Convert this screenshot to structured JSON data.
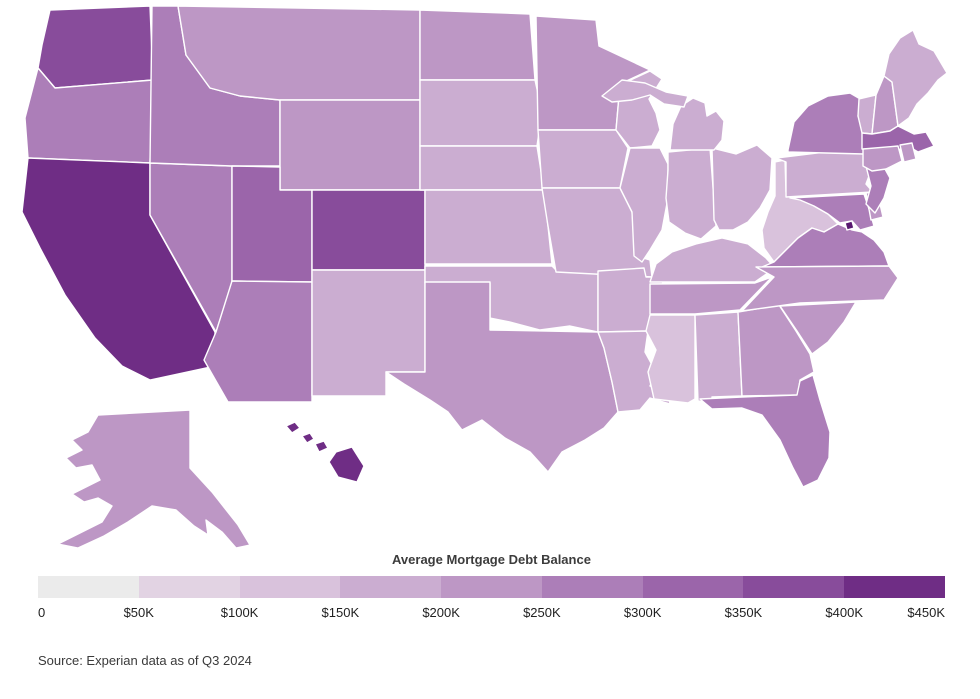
{
  "chart_data": {
    "type": "choropleth",
    "region": "United States",
    "title": "Average Mortgage Debt Balance",
    "source": "Source: Experian data as of Q3 2024",
    "legend": {
      "title": "Average Mortgage Debt Balance",
      "tick_labels": [
        "0",
        "$50K",
        "$100K",
        "$150K",
        "$200K",
        "$250K",
        "$300K",
        "$350K",
        "$400K",
        "$450K"
      ],
      "bucket_size_usd": 50000,
      "range_usd": [
        0,
        450000
      ],
      "segment_colors": [
        "#ebebeb",
        "#e2d3e3",
        "#d9c2dc",
        "#cbadd1",
        "#bd97c5",
        "#ac7eb8",
        "#9b65aa",
        "#884c9b",
        "#6f2d85",
        "#591a70"
      ]
    },
    "states": [
      {
        "abbr": "AL",
        "name": "Alabama",
        "avg_balance_usd": 174000
      },
      {
        "abbr": "AK",
        "name": "Alaska",
        "avg_balance_usd": 247000
      },
      {
        "abbr": "AZ",
        "name": "Arizona",
        "avg_balance_usd": 281000
      },
      {
        "abbr": "AR",
        "name": "Arkansas",
        "avg_balance_usd": 151000
      },
      {
        "abbr": "CA",
        "name": "California",
        "avg_balance_usd": 447000
      },
      {
        "abbr": "CO",
        "name": "Colorado",
        "avg_balance_usd": 351000
      },
      {
        "abbr": "CT",
        "name": "Connecticut",
        "avg_balance_usd": 245000
      },
      {
        "abbr": "DE",
        "name": "Delaware",
        "avg_balance_usd": 229000
      },
      {
        "abbr": "DC",
        "name": "District of Columbia",
        "avg_balance_usd": 503000
      },
      {
        "abbr": "FL",
        "name": "Florida",
        "avg_balance_usd": 255000
      },
      {
        "abbr": "GA",
        "name": "Georgia",
        "avg_balance_usd": 235000
      },
      {
        "abbr": "HI",
        "name": "Hawaii",
        "avg_balance_usd": 409000
      },
      {
        "abbr": "ID",
        "name": "Idaho",
        "avg_balance_usd": 271000
      },
      {
        "abbr": "IL",
        "name": "Illinois",
        "avg_balance_usd": 188000
      },
      {
        "abbr": "IN",
        "name": "Indiana",
        "avg_balance_usd": 157000
      },
      {
        "abbr": "IA",
        "name": "Iowa",
        "avg_balance_usd": 155000
      },
      {
        "abbr": "KS",
        "name": "Kansas",
        "avg_balance_usd": 172000
      },
      {
        "abbr": "KY",
        "name": "Kentucky",
        "avg_balance_usd": 156000
      },
      {
        "abbr": "LA",
        "name": "Louisiana",
        "avg_balance_usd": 185000
      },
      {
        "abbr": "ME",
        "name": "Maine",
        "avg_balance_usd": 190000
      },
      {
        "abbr": "MD",
        "name": "Maryland",
        "avg_balance_usd": 283000
      },
      {
        "abbr": "MA",
        "name": "Massachusetts",
        "avg_balance_usd": 317000
      },
      {
        "abbr": "MI",
        "name": "Michigan",
        "avg_balance_usd": 157000
      },
      {
        "abbr": "MN",
        "name": "Minnesota",
        "avg_balance_usd": 225000
      },
      {
        "abbr": "MS",
        "name": "Mississippi",
        "avg_balance_usd": 149000
      },
      {
        "abbr": "MO",
        "name": "Missouri",
        "avg_balance_usd": 172000
      },
      {
        "abbr": "MT",
        "name": "Montana",
        "avg_balance_usd": 246000
      },
      {
        "abbr": "NE",
        "name": "Nebraska",
        "avg_balance_usd": 175000
      },
      {
        "abbr": "NV",
        "name": "Nevada",
        "avg_balance_usd": 295000
      },
      {
        "abbr": "NH",
        "name": "New Hampshire",
        "avg_balance_usd": 242000
      },
      {
        "abbr": "NJ",
        "name": "New Jersey",
        "avg_balance_usd": 287000
      },
      {
        "abbr": "NM",
        "name": "New Mexico",
        "avg_balance_usd": 197000
      },
      {
        "abbr": "NY",
        "name": "New York",
        "avg_balance_usd": 280000
      },
      {
        "abbr": "NC",
        "name": "North Carolina",
        "avg_balance_usd": 229000
      },
      {
        "abbr": "ND",
        "name": "North Dakota",
        "avg_balance_usd": 205000
      },
      {
        "abbr": "OH",
        "name": "Ohio",
        "avg_balance_usd": 152000
      },
      {
        "abbr": "OK",
        "name": "Oklahoma",
        "avg_balance_usd": 172000
      },
      {
        "abbr": "OR",
        "name": "Oregon",
        "avg_balance_usd": 287000
      },
      {
        "abbr": "PA",
        "name": "Pennsylvania",
        "avg_balance_usd": 186000
      },
      {
        "abbr": "RI",
        "name": "Rhode Island",
        "avg_balance_usd": 247000
      },
      {
        "abbr": "SC",
        "name": "South Carolina",
        "avg_balance_usd": 217000
      },
      {
        "abbr": "SD",
        "name": "South Dakota",
        "avg_balance_usd": 198000
      },
      {
        "abbr": "TN",
        "name": "Tennessee",
        "avg_balance_usd": 219000
      },
      {
        "abbr": "TX",
        "name": "Texas",
        "avg_balance_usd": 229000
      },
      {
        "abbr": "UT",
        "name": "Utah",
        "avg_balance_usd": 320000
      },
      {
        "abbr": "VT",
        "name": "Vermont",
        "avg_balance_usd": 185000
      },
      {
        "abbr": "VA",
        "name": "Virginia",
        "avg_balance_usd": 290000
      },
      {
        "abbr": "WA",
        "name": "Washington",
        "avg_balance_usd": 364000
      },
      {
        "abbr": "WV",
        "name": "West Virginia",
        "avg_balance_usd": 141000
      },
      {
        "abbr": "WI",
        "name": "Wisconsin",
        "avg_balance_usd": 175000
      },
      {
        "abbr": "WY",
        "name": "Wyoming",
        "avg_balance_usd": 230000
      }
    ]
  }
}
